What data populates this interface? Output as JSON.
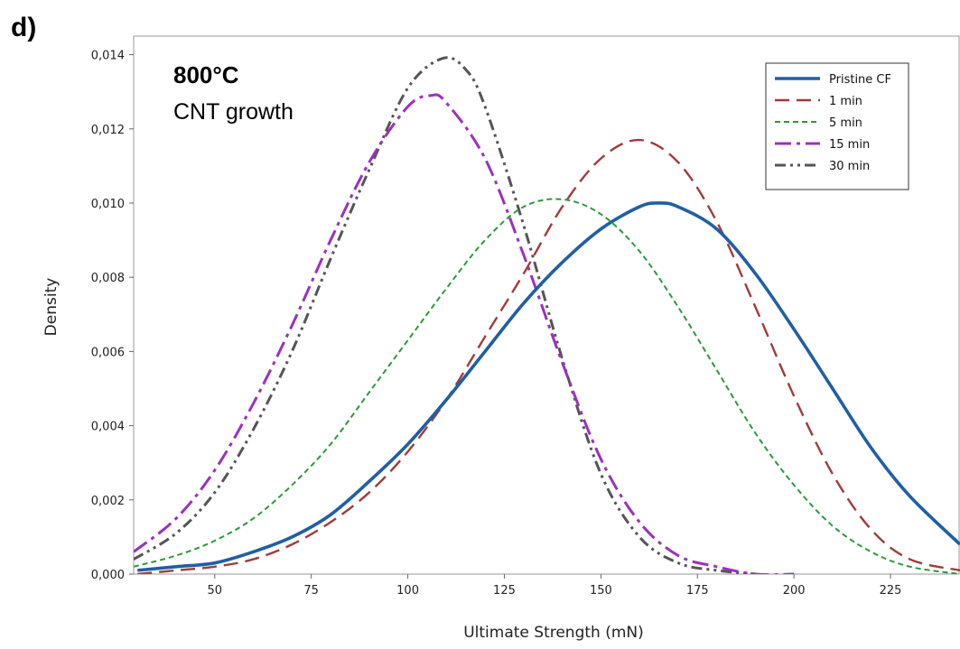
{
  "panel_label": "d)",
  "chart_data": {
    "type": "line",
    "title": "",
    "xlabel": "Ultimate Strength (mN)",
    "ylabel": "Density",
    "xlim": [
      29,
      243
    ],
    "ylim": [
      0,
      0.0145
    ],
    "x_ticks": [
      50,
      75,
      100,
      125,
      150,
      175,
      200,
      225
    ],
    "x_tick_labels": [
      "50",
      "75",
      "100",
      "125",
      "150",
      "175",
      "200",
      "225"
    ],
    "y_ticks": [
      0,
      0.002,
      0.004,
      0.006,
      0.008,
      0.01,
      0.012,
      0.014
    ],
    "y_tick_labels": [
      "0,000",
      "0,002",
      "0,004",
      "0,006",
      "0,008",
      "0,010",
      "0,012",
      "0,014"
    ],
    "grid": false,
    "legend_position": "top-right",
    "annotation": {
      "line1": "800°C",
      "line2": "CNT growth"
    },
    "series": [
      {
        "name": "Pristine CF",
        "color": "#1f5fa6",
        "style": "solid",
        "x": [
          30,
          40,
          50,
          60,
          70,
          80,
          90,
          100,
          110,
          120,
          130,
          140,
          150,
          160,
          165,
          170,
          180,
          190,
          200,
          210,
          220,
          230,
          243
        ],
        "y": [
          0.0001,
          0.0002,
          0.0003,
          0.0006,
          0.001,
          0.0016,
          0.0025,
          0.0035,
          0.0047,
          0.006,
          0.0073,
          0.0084,
          0.0093,
          0.0099,
          0.01,
          0.0099,
          0.0093,
          0.0081,
          0.0066,
          0.005,
          0.0034,
          0.0021,
          0.0008
        ]
      },
      {
        "name": "1 min",
        "color": "#a33a3a",
        "style": "dashed",
        "x": [
          30,
          40,
          50,
          60,
          70,
          80,
          90,
          100,
          110,
          120,
          130,
          140,
          150,
          160,
          170,
          180,
          190,
          200,
          210,
          220,
          230,
          243
        ],
        "y": [
          0.0,
          0.0001,
          0.0002,
          0.0004,
          0.0008,
          0.0014,
          0.0022,
          0.0033,
          0.0047,
          0.0064,
          0.0081,
          0.0099,
          0.0112,
          0.0117,
          0.0111,
          0.0095,
          0.0072,
          0.0048,
          0.0027,
          0.0012,
          0.0004,
          0.0001
        ]
      },
      {
        "name": "5 min",
        "color": "#2a9a3a",
        "style": "short-dashed",
        "x": [
          29,
          40,
          50,
          60,
          70,
          80,
          90,
          100,
          110,
          120,
          130,
          140,
          150,
          160,
          170,
          180,
          190,
          200,
          210,
          220,
          230,
          243
        ],
        "y": [
          0.0002,
          0.0005,
          0.0009,
          0.0015,
          0.0024,
          0.0035,
          0.0049,
          0.0063,
          0.0077,
          0.009,
          0.0099,
          0.0101,
          0.0097,
          0.0087,
          0.0072,
          0.0055,
          0.0038,
          0.0024,
          0.0013,
          0.0006,
          0.0002,
          0.0
        ]
      },
      {
        "name": "15 min",
        "color": "#9b30c0",
        "style": "dash-dot",
        "x": [
          29,
          40,
          50,
          60,
          70,
          80,
          90,
          100,
          106,
          110,
          120,
          130,
          140,
          150,
          160,
          170,
          180,
          190,
          200
        ],
        "y": [
          0.0006,
          0.0015,
          0.0028,
          0.0046,
          0.0067,
          0.009,
          0.0111,
          0.0126,
          0.0129,
          0.0127,
          0.0112,
          0.0086,
          0.0057,
          0.0031,
          0.0014,
          0.0005,
          0.0002,
          0.0,
          0.0
        ]
      },
      {
        "name": "30 min",
        "color": "#555555",
        "style": "dash-dot-dot",
        "x": [
          29,
          40,
          50,
          60,
          70,
          80,
          90,
          100,
          109,
          115,
          120,
          130,
          140,
          150,
          160,
          170,
          180,
          190
        ],
        "y": [
          0.0004,
          0.0011,
          0.0022,
          0.0039,
          0.006,
          0.0085,
          0.0109,
          0.0131,
          0.0139,
          0.0136,
          0.0126,
          0.0094,
          0.0058,
          0.0027,
          0.001,
          0.0003,
          0.0001,
          0.0
        ]
      }
    ]
  }
}
